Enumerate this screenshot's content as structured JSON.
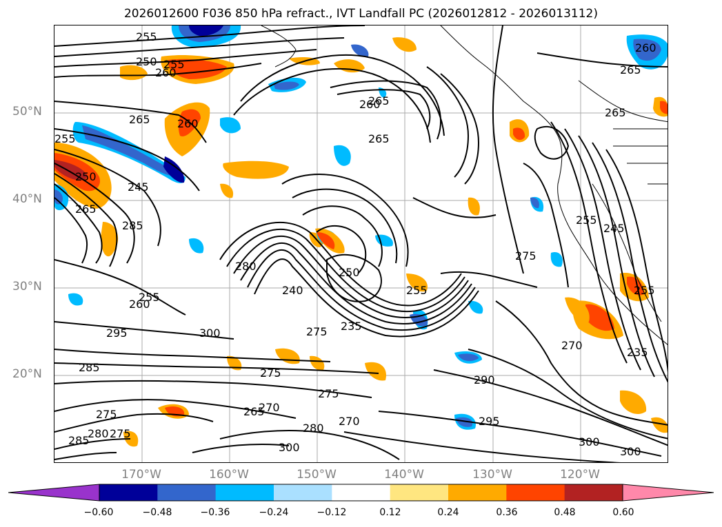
{
  "title": "2026012600 F036 850 hPa refract., IVT Landfall PC (2026012812 - 2026013112)",
  "lat_labels": [
    "50°N",
    "40°N",
    "30°N",
    "20°N"
  ],
  "lon_labels": [
    "170°W",
    "160°W",
    "150°W",
    "140°W",
    "130°W",
    "120°W"
  ],
  "contour_labels": [
    "255",
    "250",
    "255",
    "260",
    "265",
    "260",
    "255",
    "245",
    "265",
    "285",
    "260",
    "255",
    "250",
    "265",
    "260",
    "265",
    "240",
    "280",
    "250",
    "255",
    "235",
    "275",
    "300",
    "295",
    "285",
    "275",
    "280",
    "275",
    "285",
    "300",
    "265",
    "270",
    "275",
    "275",
    "280",
    "270",
    "290",
    "295",
    "300",
    "275",
    "270",
    "235",
    "255",
    "245",
    "255",
    "265",
    "260",
    "300",
    "265"
  ],
  "colorbar": {
    "tick_labels": [
      "−0.60",
      "−0.48",
      "−0.36",
      "−0.24",
      "−0.12",
      "0.12",
      "0.24",
      "0.36",
      "0.48",
      "0.60"
    ],
    "colors": [
      "#9933cc",
      "#000099",
      "#3366cc",
      "#00bbff",
      "#aae0ff",
      "#ffffff",
      "#ffe680",
      "#ffaa00",
      "#ff4400",
      "#b22222",
      "#ff88aa"
    ],
    "under_color": "#9933cc",
    "over_color": "#ff88aa"
  }
}
